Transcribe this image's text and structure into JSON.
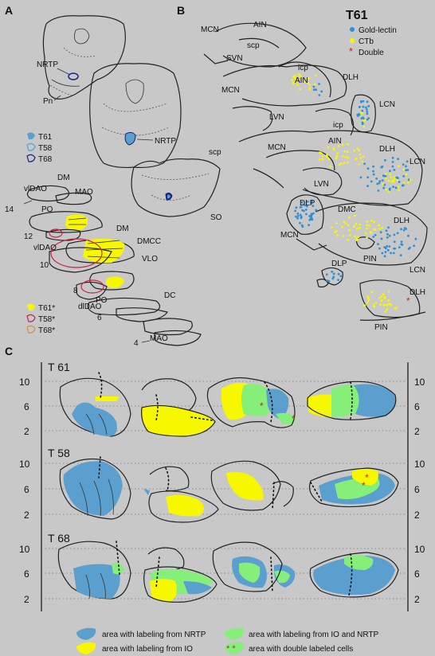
{
  "panels": {
    "a": "A",
    "b": "B",
    "c": "C"
  },
  "panel_a": {
    "labels": {
      "nrtp1": "NRTP",
      "pn": "Pn",
      "nrtp2": "NRTP",
      "scp": "scp",
      "so": "SO",
      "dm1": "DM",
      "vldao1": "vlDAO",
      "mao1": "MAO",
      "po1": "PO",
      "s14": "14",
      "s12": "12",
      "dm2": "DM",
      "vldao2": "vlDAO",
      "dmcc": "DMCC",
      "s10": "10",
      "vlo": "VLO",
      "s8": "8",
      "po2": "PO",
      "dc": "DC",
      "dldao": "dlDAO",
      "s6": "6",
      "mao2": "MAO",
      "s4": "4"
    },
    "legend1": [
      "T61",
      "T58",
      "T68"
    ],
    "legend2": [
      "T61*",
      "T58*",
      "T68*"
    ]
  },
  "panel_b": {
    "title": "T61",
    "legend": [
      "Gold-lectin",
      "CTb",
      "Double"
    ],
    "labels": {
      "mcn1": "MCN",
      "ain1": "AIN",
      "scp": "scp",
      "svn": "SVN",
      "icp1": "icp",
      "ain2": "AIN",
      "dlh1": "DLH",
      "mcn2": "MCN",
      "lcn1": "LCN",
      "lvn1": "LVN",
      "icp2": "icp",
      "ain3": "AIN",
      "mcn3": "MCN",
      "dlh2": "DLH",
      "lcn2": "LCN",
      "lvn2": "LVN",
      "dlp1": "DLP",
      "dmc": "DMC",
      "dlh3": "DLH",
      "mcn4": "MCN",
      "pin1": "PIN",
      "lcn3": "LCN",
      "dlp2": "DLP",
      "dlh4": "DLH",
      "pin2": "PIN"
    }
  },
  "panel_c": {
    "rows": [
      "T 61",
      "T 58",
      "T 68"
    ],
    "axis_ticks": [
      "10",
      "6",
      "2"
    ],
    "legend": [
      "area with labeling from NRTP",
      "area with labeling from IO and NRTP",
      "area with labeling from IO",
      "area with double labeled cells"
    ],
    "double_marker": "* *"
  },
  "colors": {
    "nrtp": "#5b9fcf",
    "io": "#f7f700",
    "io_and_nrtp": "#86ef7a",
    "double": "#cc2222",
    "t61": "#5b9fcf",
    "t58": "#cc2244",
    "t68": "#1a237e",
    "t68_star": "#e08a3a"
  }
}
